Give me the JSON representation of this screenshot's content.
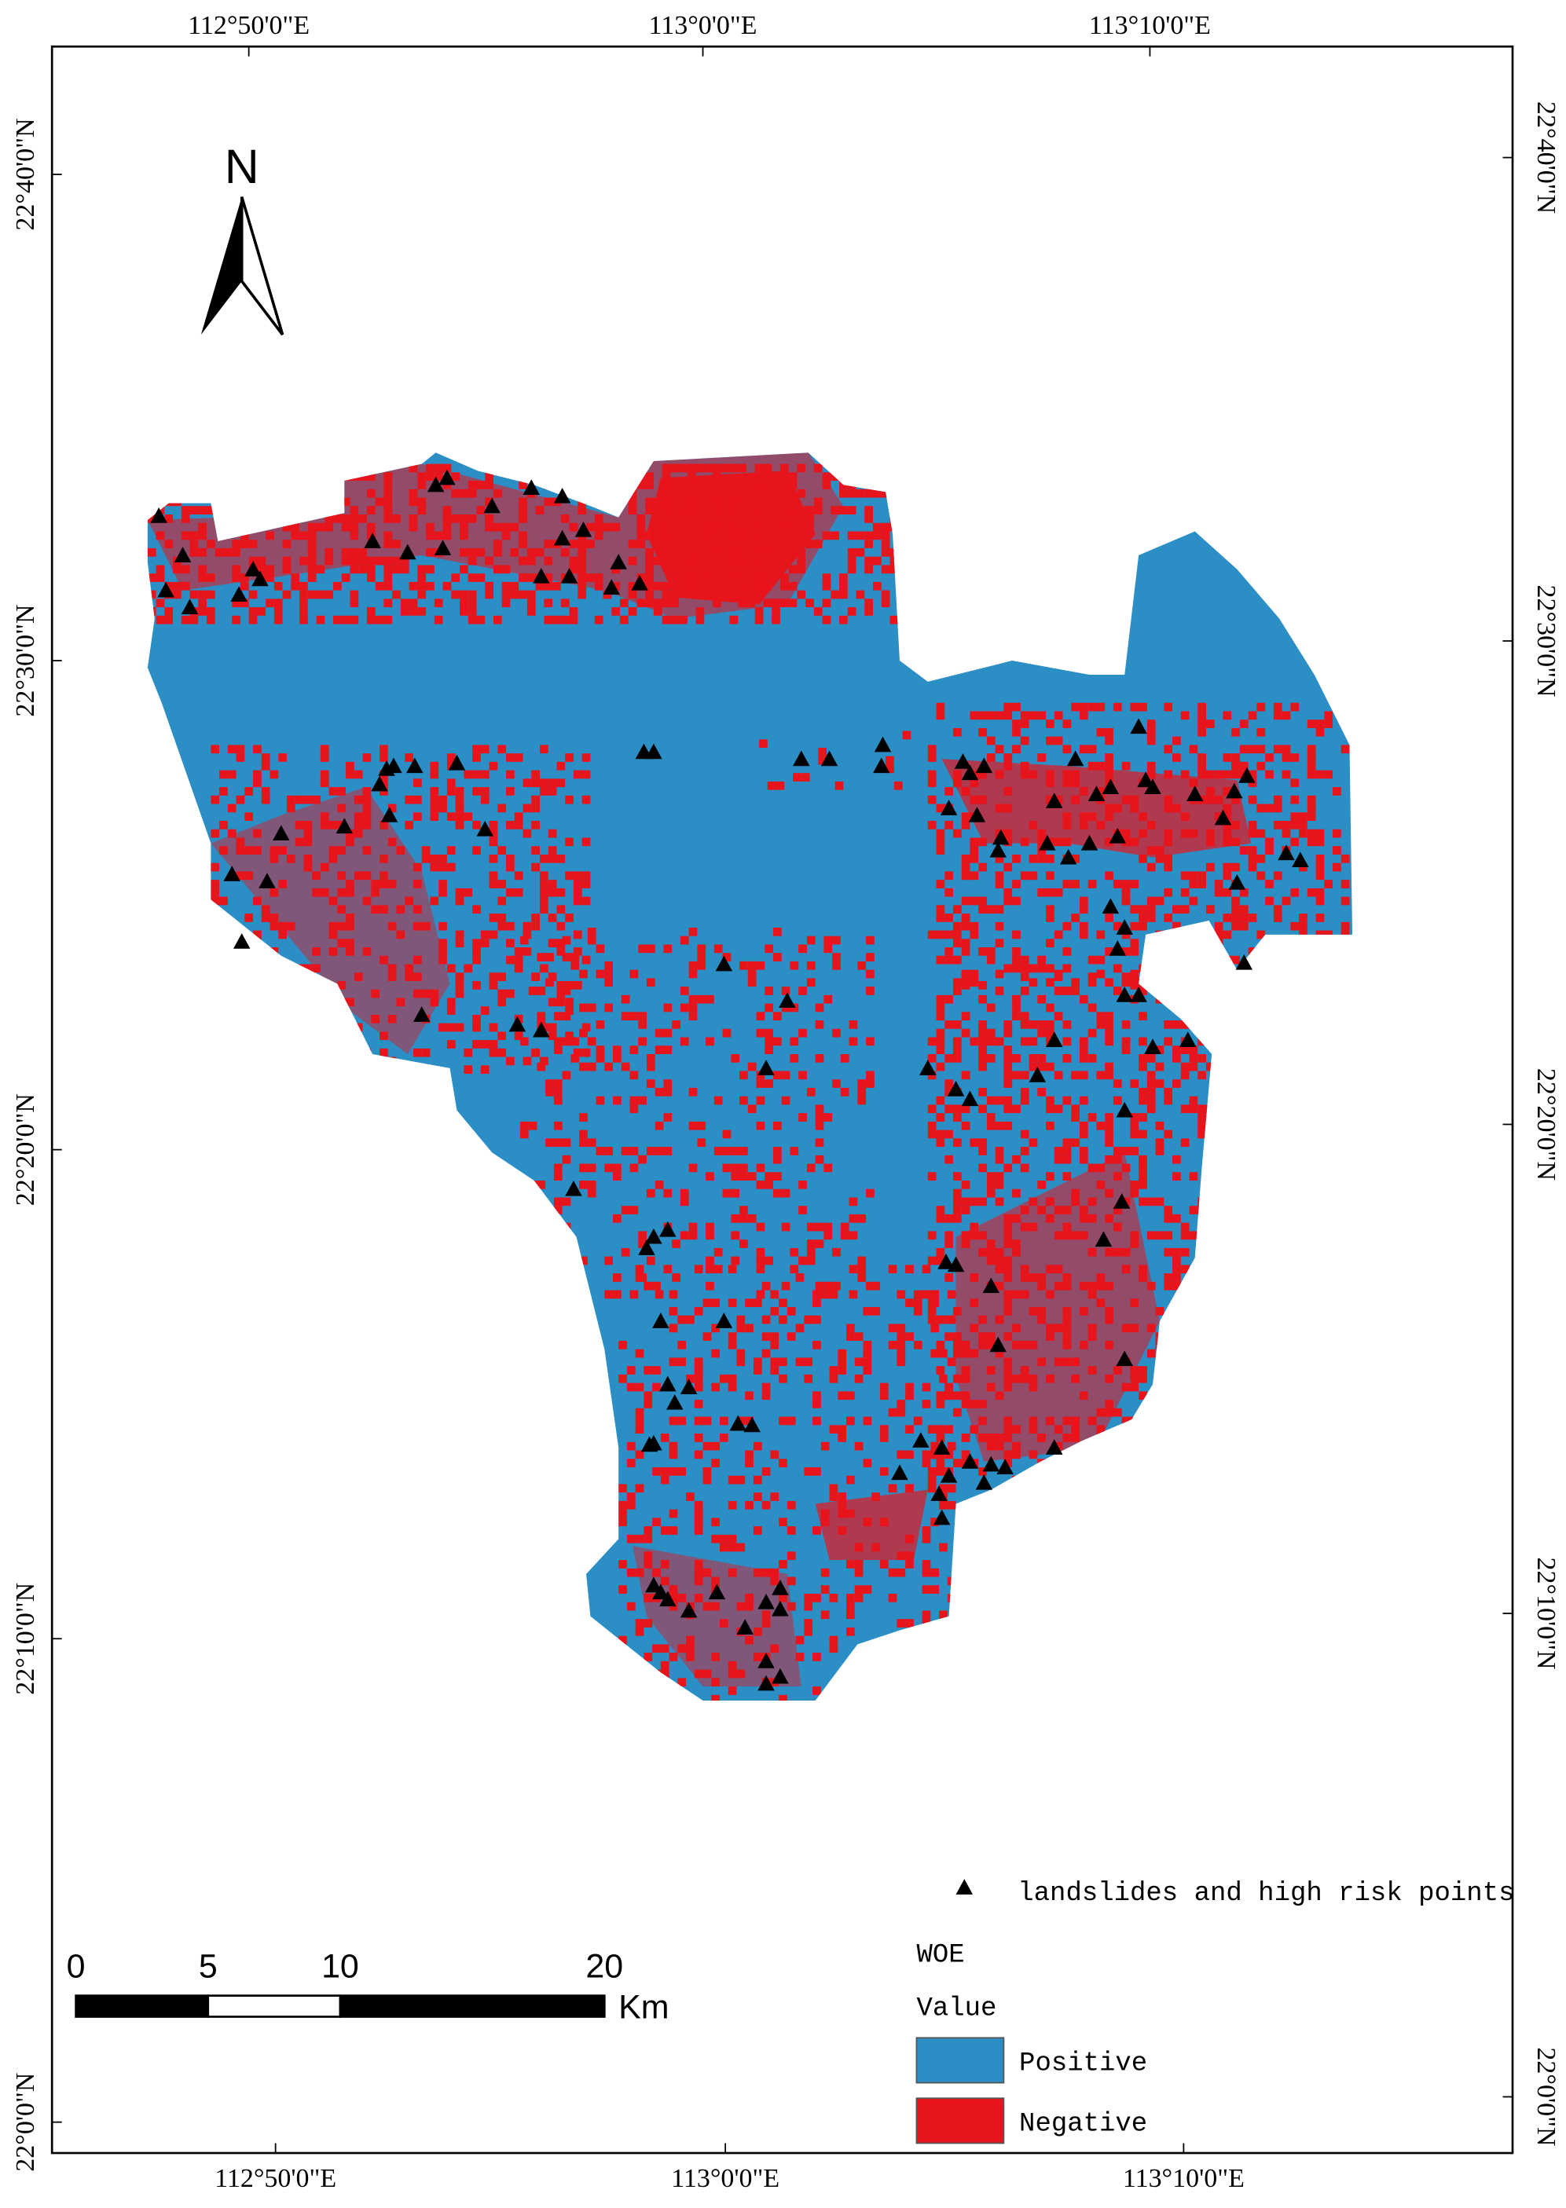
{
  "map": {
    "top_labels": [
      "112°50'0\"E",
      "113°0'0\"E",
      "113°10'0\"E"
    ],
    "bottom_labels": [
      "112°50'0\"E",
      "113°0'0\"E",
      "113°10'0\"E"
    ],
    "left_labels": [
      "22°40'0\"N",
      "22°30'0\"N",
      "22°20'0\"N",
      "22°10'0\"N",
      "22°0'0\"N"
    ],
    "right_labels": [
      "22°40'0\"N",
      "22°30'0\"N",
      "22°20'0\"N",
      "22°10'0\"N",
      "22°0'0\"N"
    ],
    "north": "N",
    "scale_bar": {
      "ticks": [
        0,
        5,
        10,
        20
      ],
      "unit": "Km"
    },
    "legend": {
      "points": "landslides and high risk points",
      "title": "WOE",
      "subtitle": "Value",
      "items": [
        {
          "label": "Positive",
          "color": "#2b8fc6"
        },
        {
          "label": "Negative",
          "color": "#e8141b"
        }
      ]
    }
  }
}
